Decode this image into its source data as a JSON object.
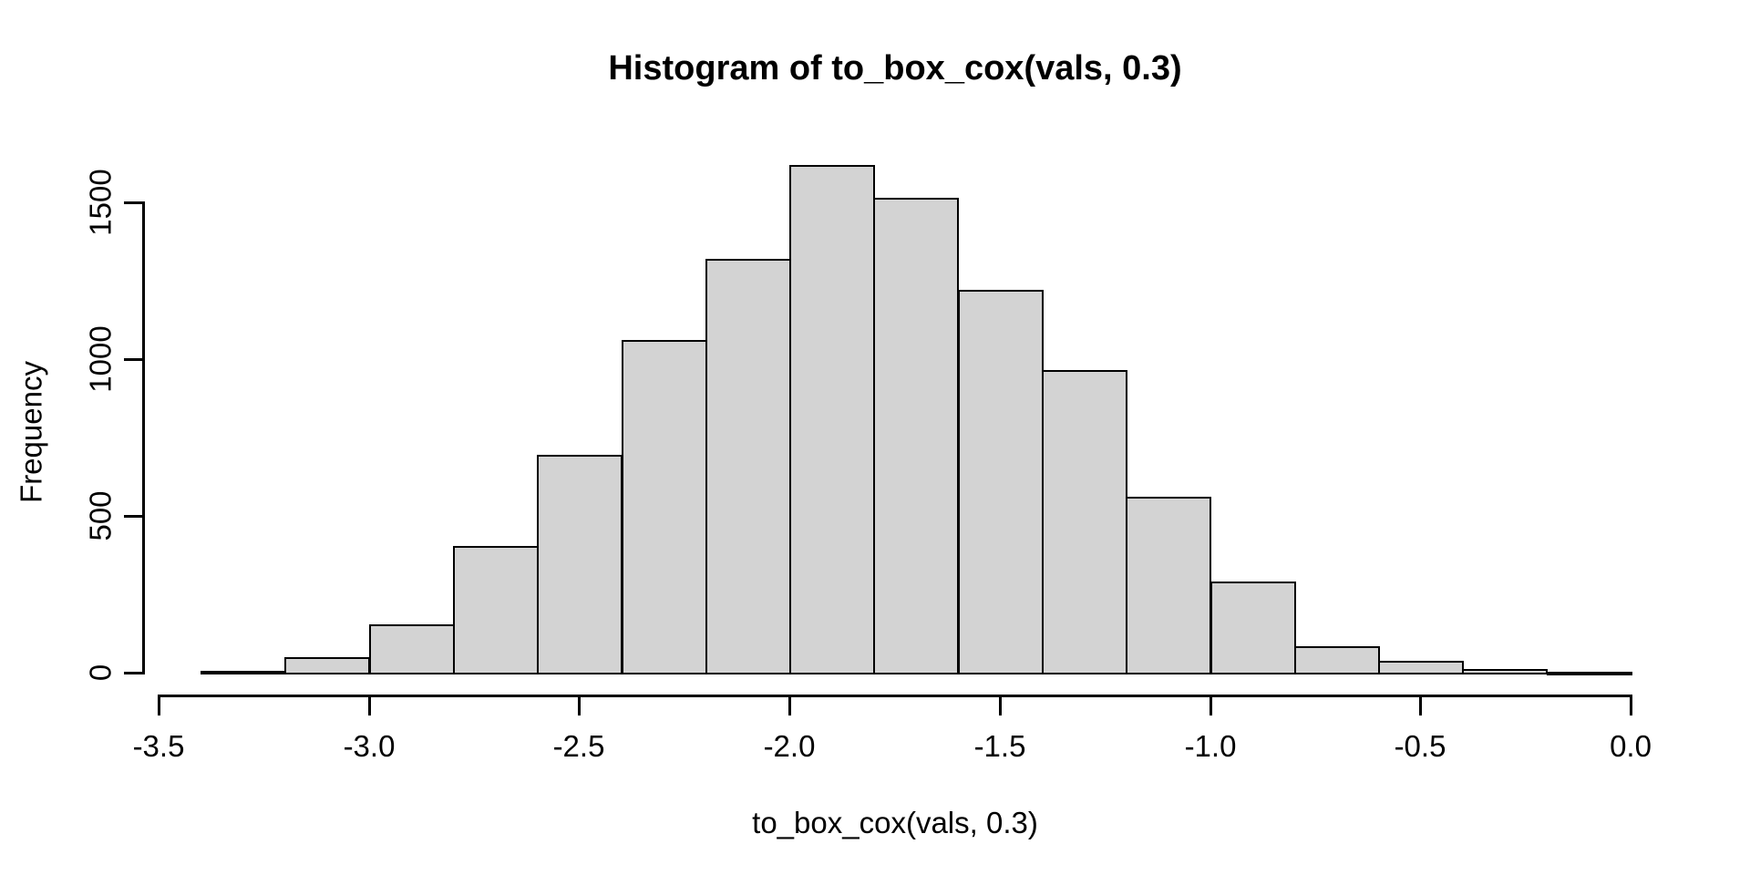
{
  "figure": {
    "background": "#ffffff",
    "text_color": "#000000"
  },
  "chart_data": {
    "type": "bar",
    "subtype": "histogram",
    "title": "Histogram of to_box_cox(vals, 0.3)",
    "xlabel": "to_box_cox(vals, 0.3)",
    "ylabel": "Frequency",
    "bar_fill": "#d3d3d3",
    "bar_border": "#000000",
    "axis_color": "#000000",
    "grid": false,
    "xlim": [
      -3.5,
      0.0
    ],
    "ylim": [
      0,
      1620
    ],
    "bin_width": 0.2,
    "breaks": [
      -3.4,
      -3.2,
      -3.0,
      -2.8,
      -2.6,
      -2.4,
      -2.2,
      -2.0,
      -1.8,
      -1.6,
      -1.4,
      -1.2,
      -1.0,
      -0.8,
      -0.6,
      -0.4,
      -0.2,
      0.0
    ],
    "counts": [
      5,
      48,
      155,
      405,
      695,
      1060,
      1320,
      1620,
      1515,
      1220,
      965,
      560,
      290,
      85,
      37,
      12,
      2
    ],
    "x_ticks": [
      {
        "value": -3.5,
        "label": "-3.5"
      },
      {
        "value": -3.0,
        "label": "-3.0"
      },
      {
        "value": -2.5,
        "label": "-2.5"
      },
      {
        "value": -2.0,
        "label": "-2.0"
      },
      {
        "value": -1.5,
        "label": "-1.5"
      },
      {
        "value": -1.0,
        "label": "-1.0"
      },
      {
        "value": -0.5,
        "label": "-0.5"
      },
      {
        "value": 0.0,
        "label": "0.0"
      }
    ],
    "y_ticks": [
      {
        "value": 0,
        "label": "0"
      },
      {
        "value": 500,
        "label": "500"
      },
      {
        "value": 1000,
        "label": "1000"
      },
      {
        "value": 1500,
        "label": "1500"
      }
    ]
  }
}
